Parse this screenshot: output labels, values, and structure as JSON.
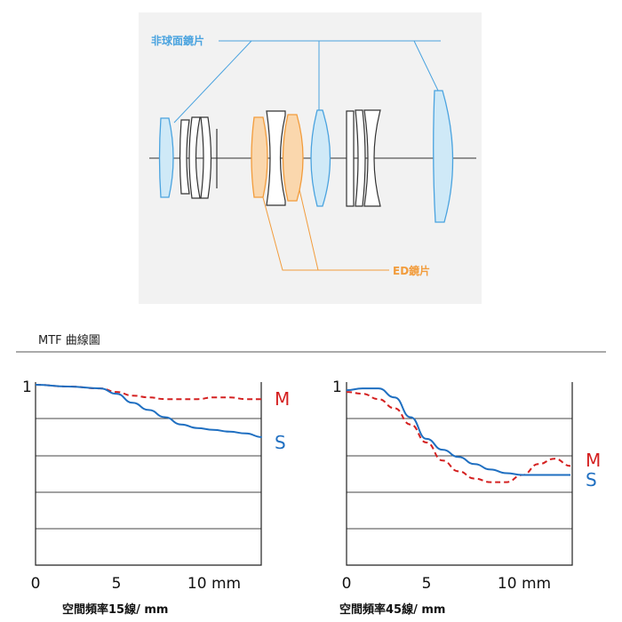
{
  "lens_diagram": {
    "aspherical_label": "非球面鏡片",
    "ed_label": "ED鏡片",
    "colors": {
      "aspherical": "#cfe9f7",
      "aspherical_stroke": "#4aa3df",
      "ed": "#fad7ad",
      "ed_stroke": "#f29c3c",
      "plain_stroke": "#333333"
    }
  },
  "section_title": "MTF 曲線圖",
  "chart_data": [
    {
      "type": "line",
      "y_top_label": "1",
      "x_ticks": [
        "0",
        "5",
        "10 mm"
      ],
      "xlabel": "空間頻率15線/ mm",
      "xlim": [
        0,
        14
      ],
      "ylim": [
        0,
        1
      ],
      "grid": true,
      "series": [
        {
          "name": "M",
          "style": "dashed",
          "color": "#d42020",
          "x": [
            0,
            2,
            4,
            5,
            6,
            7,
            8,
            9,
            10,
            11,
            12,
            13,
            14
          ],
          "y": [
            1.0,
            0.99,
            0.98,
            0.96,
            0.94,
            0.93,
            0.92,
            0.92,
            0.92,
            0.93,
            0.93,
            0.92,
            0.92
          ]
        },
        {
          "name": "S",
          "style": "solid",
          "color": "#1f6fc1",
          "x": [
            0,
            2,
            4,
            5,
            6,
            7,
            8,
            9,
            10,
            11,
            12,
            13,
            14
          ],
          "y": [
            1.0,
            0.99,
            0.98,
            0.95,
            0.9,
            0.86,
            0.82,
            0.78,
            0.76,
            0.75,
            0.74,
            0.73,
            0.71
          ]
        }
      ]
    },
    {
      "type": "line",
      "y_top_label": "1",
      "x_ticks": [
        "0",
        "5",
        "10 mm"
      ],
      "xlabel": "空間頻率45線/ mm",
      "xlim": [
        0,
        14
      ],
      "ylim": [
        0,
        1
      ],
      "grid": true,
      "series": [
        {
          "name": "M",
          "style": "dashed",
          "color": "#d42020",
          "x": [
            0,
            1,
            2,
            3,
            4,
            5,
            6,
            7,
            8,
            9,
            10,
            11,
            12,
            13,
            14
          ],
          "y": [
            0.96,
            0.95,
            0.92,
            0.87,
            0.78,
            0.68,
            0.58,
            0.52,
            0.48,
            0.46,
            0.46,
            0.5,
            0.56,
            0.59,
            0.55
          ]
        },
        {
          "name": "S",
          "style": "solid",
          "color": "#1f6fc1",
          "x": [
            0,
            1,
            2,
            3,
            4,
            5,
            6,
            7,
            8,
            9,
            10,
            11,
            12,
            13,
            14
          ],
          "y": [
            0.97,
            0.98,
            0.98,
            0.93,
            0.82,
            0.7,
            0.64,
            0.6,
            0.56,
            0.53,
            0.51,
            0.5,
            0.5,
            0.5,
            0.5
          ]
        }
      ]
    }
  ]
}
